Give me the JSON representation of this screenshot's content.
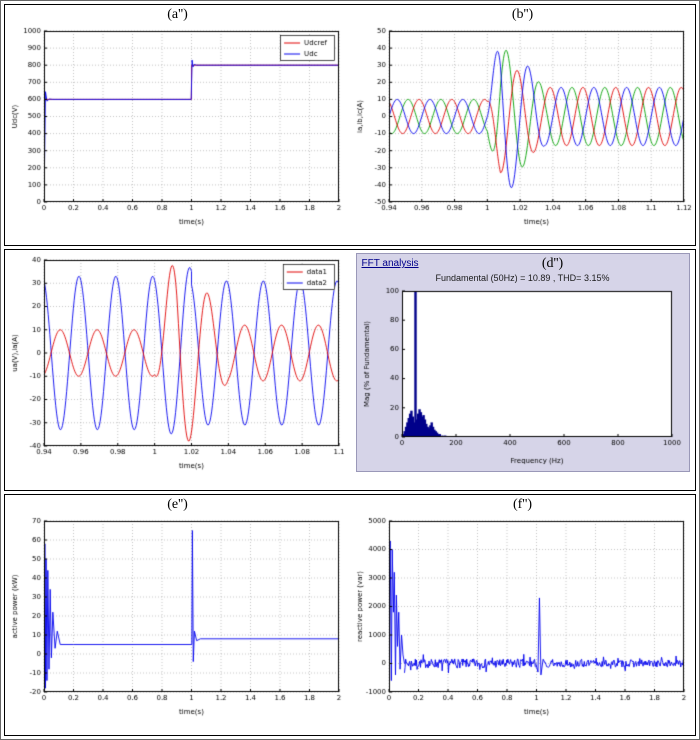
{
  "page": {
    "bg": "#ffffff"
  },
  "colors": {
    "blue": "#0000ee",
    "green": "#00a000",
    "red": "#e00000",
    "grid": "#999999",
    "axis": "#000000",
    "fft_panel": "#d6d4e8",
    "fft_bar": "#00008b",
    "fft_header_text": "#00008b"
  },
  "fft": {
    "header": "FFT analysis",
    "headline": "Fundamental (50Hz) = 10.89 , THD= 3.15%"
  },
  "chart_data": [
    {
      "id": "a",
      "title": "(a'')",
      "type": "line",
      "xlabel": "time(s)",
      "ylabel": "Udc(V)",
      "xlim": [
        0,
        2
      ],
      "ylim": [
        0,
        1000
      ],
      "xticks": [
        0,
        0.2,
        0.4,
        0.6,
        0.8,
        1,
        1.2,
        1.4,
        1.6,
        1.8,
        2
      ],
      "yticks": [
        0,
        100,
        200,
        300,
        400,
        500,
        600,
        700,
        800,
        900,
        1000
      ],
      "grid": true,
      "legend": [
        {
          "label": "Udcref",
          "color": "#e00000"
        },
        {
          "label": "Udc",
          "color": "#0000ee"
        }
      ],
      "series": [
        {
          "name": "Udcref",
          "kind": "poly",
          "color": "#e00000",
          "points": [
            [
              0,
              600
            ],
            [
              0.999,
              600
            ],
            [
              1.001,
              800
            ],
            [
              2,
              800
            ]
          ]
        },
        {
          "name": "Udc",
          "kind": "poly",
          "color": "#0000ee",
          "points": [
            [
              0,
              0
            ],
            [
              0.01,
              645
            ],
            [
              0.02,
              590
            ],
            [
              0.035,
              602
            ],
            [
              0.06,
              600
            ],
            [
              0.998,
              600
            ],
            [
              1.004,
              830
            ],
            [
              1.01,
              790
            ],
            [
              1.018,
              804
            ],
            [
              1.035,
              800
            ],
            [
              2,
              800
            ]
          ]
        }
      ]
    },
    {
      "id": "b",
      "title": "(b'')",
      "type": "line",
      "xlabel": "time(s)",
      "ylabel": "ia,ib,ic(A)",
      "xlim": [
        0.94,
        1.12
      ],
      "ylim": [
        -50,
        50
      ],
      "xticks": [
        0.94,
        0.96,
        0.98,
        1,
        1.02,
        1.04,
        1.06,
        1.08,
        1.1,
        1.12
      ],
      "yticks": [
        -50,
        -40,
        -30,
        -20,
        -10,
        0,
        10,
        20,
        30,
        40,
        50
      ],
      "grid": true,
      "series": [
        {
          "name": "ib",
          "kind": "sine",
          "color": "#00a000",
          "freq": 50,
          "phase": -2.094,
          "segments": [
            [
              0.94,
              1.0,
              10,
              10
            ],
            [
              1.0,
              1.008,
              10,
              42
            ],
            [
              1.008,
              1.035,
              42,
              17
            ],
            [
              1.035,
              1.12,
              17,
              17
            ]
          ]
        },
        {
          "name": "ic",
          "kind": "sine",
          "color": "#e00000",
          "freq": 50,
          "phase": 2.094,
          "segments": [
            [
              0.94,
              1.0,
              10,
              10
            ],
            [
              1.0,
              1.008,
              10,
              33
            ],
            [
              1.008,
              1.035,
              33,
              17
            ],
            [
              1.035,
              1.12,
              17,
              17
            ]
          ]
        },
        {
          "name": "ia",
          "kind": "sine",
          "color": "#0000ee",
          "freq": 50,
          "phase": 0,
          "segments": [
            [
              0.94,
              1.0,
              10,
              10
            ],
            [
              1.0,
              1.008,
              10,
              50
            ],
            [
              1.008,
              1.035,
              50,
              17
            ],
            [
              1.035,
              1.12,
              17,
              17
            ]
          ]
        }
      ]
    },
    {
      "id": "c",
      "title": "",
      "type": "line",
      "xlabel": "time(s)",
      "ylabel": "ua(V),ia(A)",
      "xlim": [
        0.94,
        1.1
      ],
      "ylim": [
        -40,
        40
      ],
      "xticks": [
        0.94,
        0.96,
        0.98,
        1,
        1.02,
        1.04,
        1.06,
        1.08,
        1.1
      ],
      "yticks": [
        -40,
        -30,
        -20,
        -10,
        0,
        10,
        20,
        30,
        40
      ],
      "grid": true,
      "legend": [
        {
          "label": "data1",
          "color": "#e00000"
        },
        {
          "label": "data2",
          "color": "#0000ee"
        }
      ],
      "series": [
        {
          "name": "data2",
          "kind": "sine",
          "color": "#0000ee",
          "freq": 50,
          "phase": 1.9,
          "segments": [
            [
              0.94,
              1.0,
              33,
              33
            ],
            [
              1.0,
              1.02,
              33,
              37
            ],
            [
              1.02,
              1.1,
              31,
              31
            ]
          ]
        },
        {
          "name": "data1",
          "kind": "sine",
          "color": "#e00000",
          "freq": 50,
          "phase": -1.2,
          "segments": [
            [
              0.94,
              1.0,
              10,
              10
            ],
            [
              1.0,
              1.012,
              10,
              46
            ],
            [
              1.012,
              1.04,
              46,
              12
            ],
            [
              1.04,
              1.1,
              12,
              12
            ]
          ]
        }
      ]
    },
    {
      "id": "d",
      "title": "(d'')",
      "type": "bar",
      "xlabel": "Frequency (Hz)",
      "ylabel": "Mag (% of Fundamental)",
      "xlim": [
        0,
        1000
      ],
      "ylim": [
        0,
        100
      ],
      "xticks": [
        0,
        200,
        400,
        600,
        800,
        1000
      ],
      "yticks": [
        0,
        20,
        40,
        60,
        80,
        100
      ],
      "grid": false,
      "outer_bg": "#d6d4e8",
      "bar_color": "#00008b",
      "margins": {
        "l": 42,
        "r": 14,
        "t": 6,
        "b": 30
      },
      "bars": [
        [
          5,
          2
        ],
        [
          10,
          4
        ],
        [
          15,
          7
        ],
        [
          20,
          10
        ],
        [
          25,
          13
        ],
        [
          30,
          16
        ],
        [
          35,
          18
        ],
        [
          40,
          14
        ],
        [
          45,
          10
        ],
        [
          50,
          100
        ],
        [
          55,
          12
        ],
        [
          60,
          16
        ],
        [
          65,
          19
        ],
        [
          70,
          17
        ],
        [
          75,
          14
        ],
        [
          80,
          15
        ],
        [
          85,
          12
        ],
        [
          90,
          9
        ],
        [
          95,
          7
        ],
        [
          100,
          6
        ],
        [
          105,
          8
        ],
        [
          110,
          10
        ],
        [
          115,
          7
        ],
        [
          120,
          5
        ],
        [
          125,
          4
        ],
        [
          130,
          3
        ],
        [
          135,
          2
        ],
        [
          140,
          2
        ],
        [
          150,
          1
        ],
        [
          160,
          1
        ]
      ]
    },
    {
      "id": "e",
      "title": "(e'')",
      "type": "line",
      "xlabel": "time(s)",
      "ylabel": "active power (kW)",
      "xlim": [
        0,
        2
      ],
      "ylim": [
        -20,
        70
      ],
      "xticks": [
        0,
        0.2,
        0.4,
        0.6,
        0.8,
        1,
        1.2,
        1.4,
        1.6,
        1.8,
        2
      ],
      "yticks": [
        -20,
        -10,
        0,
        10,
        20,
        30,
        40,
        50,
        60,
        70
      ],
      "grid": true,
      "series": [
        {
          "name": "P",
          "kind": "poly",
          "color": "#0000ee",
          "points": [
            [
              0,
              0
            ],
            [
              0.006,
              58
            ],
            [
              0.01,
              -18
            ],
            [
              0.014,
              50
            ],
            [
              0.02,
              -14
            ],
            [
              0.026,
              44
            ],
            [
              0.034,
              -8
            ],
            [
              0.042,
              34
            ],
            [
              0.05,
              -2
            ],
            [
              0.06,
              22
            ],
            [
              0.075,
              3
            ],
            [
              0.09,
              12
            ],
            [
              0.11,
              5
            ],
            [
              0.2,
              5
            ],
            [
              0.99,
              5
            ],
            [
              1.002,
              5
            ],
            [
              1.006,
              65
            ],
            [
              1.012,
              -4
            ],
            [
              1.02,
              12
            ],
            [
              1.035,
              7
            ],
            [
              1.06,
              8
            ],
            [
              2,
              8
            ]
          ]
        }
      ]
    },
    {
      "id": "f",
      "title": "(f'')",
      "type": "line",
      "xlabel": "time(s)",
      "ylabel": "reactive power (var)",
      "xlim": [
        0,
        2
      ],
      "ylim": [
        -1000,
        5000
      ],
      "xticks": [
        0,
        0.2,
        0.4,
        0.6,
        0.8,
        1,
        1.2,
        1.4,
        1.6,
        1.8,
        2
      ],
      "yticks": [
        -1000,
        0,
        1000,
        2000,
        3000,
        4000,
        5000
      ],
      "grid": true,
      "series": [
        {
          "name": "Q-start",
          "kind": "poly",
          "color": "#0000ee",
          "points": [
            [
              0,
              0
            ],
            [
              0.008,
              4300
            ],
            [
              0.016,
              -600
            ],
            [
              0.022,
              4000
            ],
            [
              0.03,
              1800
            ],
            [
              0.036,
              3200
            ],
            [
              0.044,
              -400
            ],
            [
              0.05,
              2400
            ],
            [
              0.058,
              600
            ],
            [
              0.066,
              1800
            ],
            [
              0.075,
              -200
            ],
            [
              0.085,
              1000
            ],
            [
              0.095,
              300
            ],
            [
              0.105,
              0
            ]
          ]
        },
        {
          "name": "Q-noise1",
          "kind": "noise",
          "color": "#0000ee",
          "t0": 0.105,
          "t1": 0.995,
          "base": 0,
          "amp": 160,
          "n": 230,
          "seed": 7
        },
        {
          "name": "Q-step",
          "kind": "poly",
          "color": "#0000ee",
          "points": [
            [
              0.995,
              0
            ],
            [
              1.01,
              -300
            ],
            [
              1.02,
              2300
            ],
            [
              1.03,
              -400
            ],
            [
              1.045,
              150
            ],
            [
              1.06,
              0
            ]
          ]
        },
        {
          "name": "Q-noise2",
          "kind": "noise",
          "color": "#0000ee",
          "t0": 1.06,
          "t1": 2,
          "base": 0,
          "amp": 130,
          "n": 210,
          "seed": 13
        }
      ]
    }
  ]
}
